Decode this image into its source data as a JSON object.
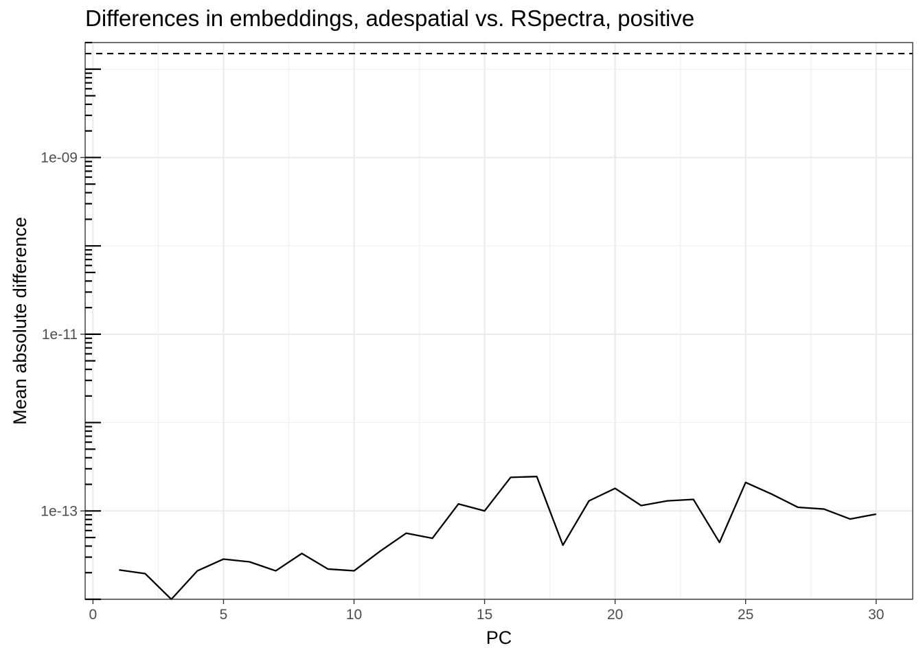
{
  "chart_data": {
    "type": "line",
    "title": "Differences in embeddings, adespatial vs. RSpectra, positive",
    "xlabel": "PC",
    "ylabel": "Mean absolute difference",
    "xlim": [
      -0.3,
      31.4
    ],
    "ylim": [
      1e-14,
      2e-08
    ],
    "yscale": "log",
    "grid": true,
    "x_ticks": [
      0,
      5,
      10,
      15,
      20,
      25,
      30
    ],
    "x_tick_labels": [
      "0",
      "5",
      "10",
      "15",
      "20",
      "25",
      "30"
    ],
    "y_ticks": [
      1e-09,
      1e-11,
      1e-13
    ],
    "y_tick_labels": [
      "1e-09",
      "1e-11",
      "1e-13"
    ],
    "reference_line": {
      "y": 1.5e-08,
      "style": "dashed",
      "color": "#000000"
    },
    "series": [
      {
        "color": "#000000",
        "x": [
          1,
          2,
          3,
          4,
          5,
          6,
          7,
          8,
          9,
          10,
          11,
          12,
          13,
          14,
          15,
          16,
          17,
          18,
          19,
          20,
          21,
          22,
          23,
          24,
          25,
          26,
          27,
          28,
          29,
          30
        ],
        "values": [
          2.15e-14,
          1.95e-14,
          1e-14,
          2.1e-14,
          2.85e-14,
          2.65e-14,
          2.1e-14,
          3.3e-14,
          2.2e-14,
          2.1e-14,
          3.5e-14,
          5.6e-14,
          4.9e-14,
          1.2e-13,
          1e-13,
          2.4e-13,
          2.45e-13,
          4.1e-14,
          1.3e-13,
          1.8e-13,
          1.15e-13,
          1.3e-13,
          1.35e-13,
          4.4e-14,
          2.1e-13,
          1.55e-13,
          1.1e-13,
          1.05e-13,
          8.1e-14,
          9.2e-14
        ]
      }
    ]
  }
}
